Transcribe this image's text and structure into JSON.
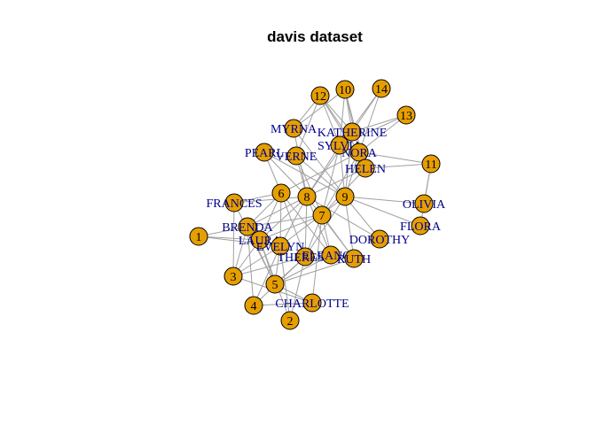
{
  "graph": {
    "title": "davis dataset",
    "colors": {
      "node_fill": "#e69f00",
      "node_stroke": "#000000",
      "edge": "#a0a0a0",
      "event_label": "#000000",
      "person_label": "#00008b"
    },
    "nodes": [
      {
        "id": "1",
        "label": "1",
        "kind": "event"
      },
      {
        "id": "2",
        "label": "2",
        "kind": "event"
      },
      {
        "id": "3",
        "label": "3",
        "kind": "event"
      },
      {
        "id": "4",
        "label": "4",
        "kind": "event"
      },
      {
        "id": "5",
        "label": "5",
        "kind": "event"
      },
      {
        "id": "6",
        "label": "6",
        "kind": "event"
      },
      {
        "id": "7",
        "label": "7",
        "kind": "event"
      },
      {
        "id": "8",
        "label": "8",
        "kind": "event"
      },
      {
        "id": "9",
        "label": "9",
        "kind": "event"
      },
      {
        "id": "10",
        "label": "10",
        "kind": "event"
      },
      {
        "id": "11",
        "label": "11",
        "kind": "event"
      },
      {
        "id": "12",
        "label": "12",
        "kind": "event"
      },
      {
        "id": "13",
        "label": "13",
        "kind": "event"
      },
      {
        "id": "14",
        "label": "14",
        "kind": "event"
      },
      {
        "id": "MYRNA",
        "label": "MYRNA",
        "kind": "person"
      },
      {
        "id": "KATHERINE",
        "label": "KATHERINE",
        "kind": "person"
      },
      {
        "id": "SYLVIA",
        "label": "SYLVIA",
        "kind": "person"
      },
      {
        "id": "NORA",
        "label": "NORA",
        "kind": "person"
      },
      {
        "id": "PEARL",
        "label": "PEARL",
        "kind": "person"
      },
      {
        "id": "VERNE",
        "label": "VERNE",
        "kind": "person"
      },
      {
        "id": "HELEN",
        "label": "HELEN",
        "kind": "person"
      },
      {
        "id": "FRANCES",
        "label": "FRANCES",
        "kind": "person"
      },
      {
        "id": "OLIVIA",
        "label": "OLIVIA",
        "kind": "person"
      },
      {
        "id": "FLORA",
        "label": "FLORA",
        "kind": "person"
      },
      {
        "id": "BRENDA",
        "label": "BRENDA",
        "kind": "person"
      },
      {
        "id": "LAURA",
        "label": "LAURA",
        "kind": "person"
      },
      {
        "id": "EVELYN",
        "label": "EVELYN",
        "kind": "person"
      },
      {
        "id": "DOROTHY",
        "label": "DOROTHY",
        "kind": "person"
      },
      {
        "id": "THERESA",
        "label": "THERESA",
        "kind": "person"
      },
      {
        "id": "ELEANOR",
        "label": "ELEANOR",
        "kind": "person"
      },
      {
        "id": "RUTH",
        "label": "RUTH",
        "kind": "person"
      },
      {
        "id": "CHARLOTTE",
        "label": "CHARLOTTE",
        "kind": "person"
      }
    ],
    "edges": [
      [
        "EVELYN",
        "1"
      ],
      [
        "EVELYN",
        "2"
      ],
      [
        "EVELYN",
        "3"
      ],
      [
        "EVELYN",
        "4"
      ],
      [
        "EVELYN",
        "5"
      ],
      [
        "EVELYN",
        "6"
      ],
      [
        "EVELYN",
        "8"
      ],
      [
        "EVELYN",
        "9"
      ],
      [
        "LAURA",
        "1"
      ],
      [
        "LAURA",
        "2"
      ],
      [
        "LAURA",
        "3"
      ],
      [
        "LAURA",
        "5"
      ],
      [
        "LAURA",
        "6"
      ],
      [
        "LAURA",
        "7"
      ],
      [
        "LAURA",
        "8"
      ],
      [
        "THERESA",
        "2"
      ],
      [
        "THERESA",
        "3"
      ],
      [
        "THERESA",
        "4"
      ],
      [
        "THERESA",
        "5"
      ],
      [
        "THERESA",
        "6"
      ],
      [
        "THERESA",
        "7"
      ],
      [
        "THERESA",
        "8"
      ],
      [
        "THERESA",
        "9"
      ],
      [
        "BRENDA",
        "1"
      ],
      [
        "BRENDA",
        "3"
      ],
      [
        "BRENDA",
        "4"
      ],
      [
        "BRENDA",
        "5"
      ],
      [
        "BRENDA",
        "6"
      ],
      [
        "BRENDA",
        "7"
      ],
      [
        "BRENDA",
        "8"
      ],
      [
        "CHARLOTTE",
        "3"
      ],
      [
        "CHARLOTTE",
        "4"
      ],
      [
        "CHARLOTTE",
        "5"
      ],
      [
        "CHARLOTTE",
        "7"
      ],
      [
        "FRANCES",
        "3"
      ],
      [
        "FRANCES",
        "5"
      ],
      [
        "FRANCES",
        "6"
      ],
      [
        "FRANCES",
        "8"
      ],
      [
        "ELEANOR",
        "5"
      ],
      [
        "ELEANOR",
        "6"
      ],
      [
        "ELEANOR",
        "7"
      ],
      [
        "ELEANOR",
        "8"
      ],
      [
        "PEARL",
        "6"
      ],
      [
        "PEARL",
        "8"
      ],
      [
        "PEARL",
        "9"
      ],
      [
        "RUTH",
        "5"
      ],
      [
        "RUTH",
        "7"
      ],
      [
        "RUTH",
        "8"
      ],
      [
        "RUTH",
        "9"
      ],
      [
        "VERNE",
        "7"
      ],
      [
        "VERNE",
        "8"
      ],
      [
        "VERNE",
        "9"
      ],
      [
        "VERNE",
        "12"
      ],
      [
        "MYRNA",
        "8"
      ],
      [
        "MYRNA",
        "9"
      ],
      [
        "MYRNA",
        "10"
      ],
      [
        "MYRNA",
        "12"
      ],
      [
        "KATHERINE",
        "8"
      ],
      [
        "KATHERINE",
        "9"
      ],
      [
        "KATHERINE",
        "10"
      ],
      [
        "KATHERINE",
        "12"
      ],
      [
        "KATHERINE",
        "13"
      ],
      [
        "KATHERINE",
        "14"
      ],
      [
        "SYLVIA",
        "7"
      ],
      [
        "SYLVIA",
        "8"
      ],
      [
        "SYLVIA",
        "9"
      ],
      [
        "SYLVIA",
        "10"
      ],
      [
        "SYLVIA",
        "12"
      ],
      [
        "SYLVIA",
        "13"
      ],
      [
        "SYLVIA",
        "14"
      ],
      [
        "NORA",
        "6"
      ],
      [
        "NORA",
        "7"
      ],
      [
        "NORA",
        "9"
      ],
      [
        "NORA",
        "10"
      ],
      [
        "NORA",
        "11"
      ],
      [
        "NORA",
        "12"
      ],
      [
        "NORA",
        "13"
      ],
      [
        "NORA",
        "14"
      ],
      [
        "HELEN",
        "7"
      ],
      [
        "HELEN",
        "8"
      ],
      [
        "HELEN",
        "10"
      ],
      [
        "HELEN",
        "11"
      ],
      [
        "HELEN",
        "12"
      ],
      [
        "DOROTHY",
        "8"
      ],
      [
        "DOROTHY",
        "9"
      ],
      [
        "OLIVIA",
        "9"
      ],
      [
        "OLIVIA",
        "11"
      ],
      [
        "FLORA",
        "9"
      ],
      [
        "FLORA",
        "11"
      ]
    ]
  }
}
